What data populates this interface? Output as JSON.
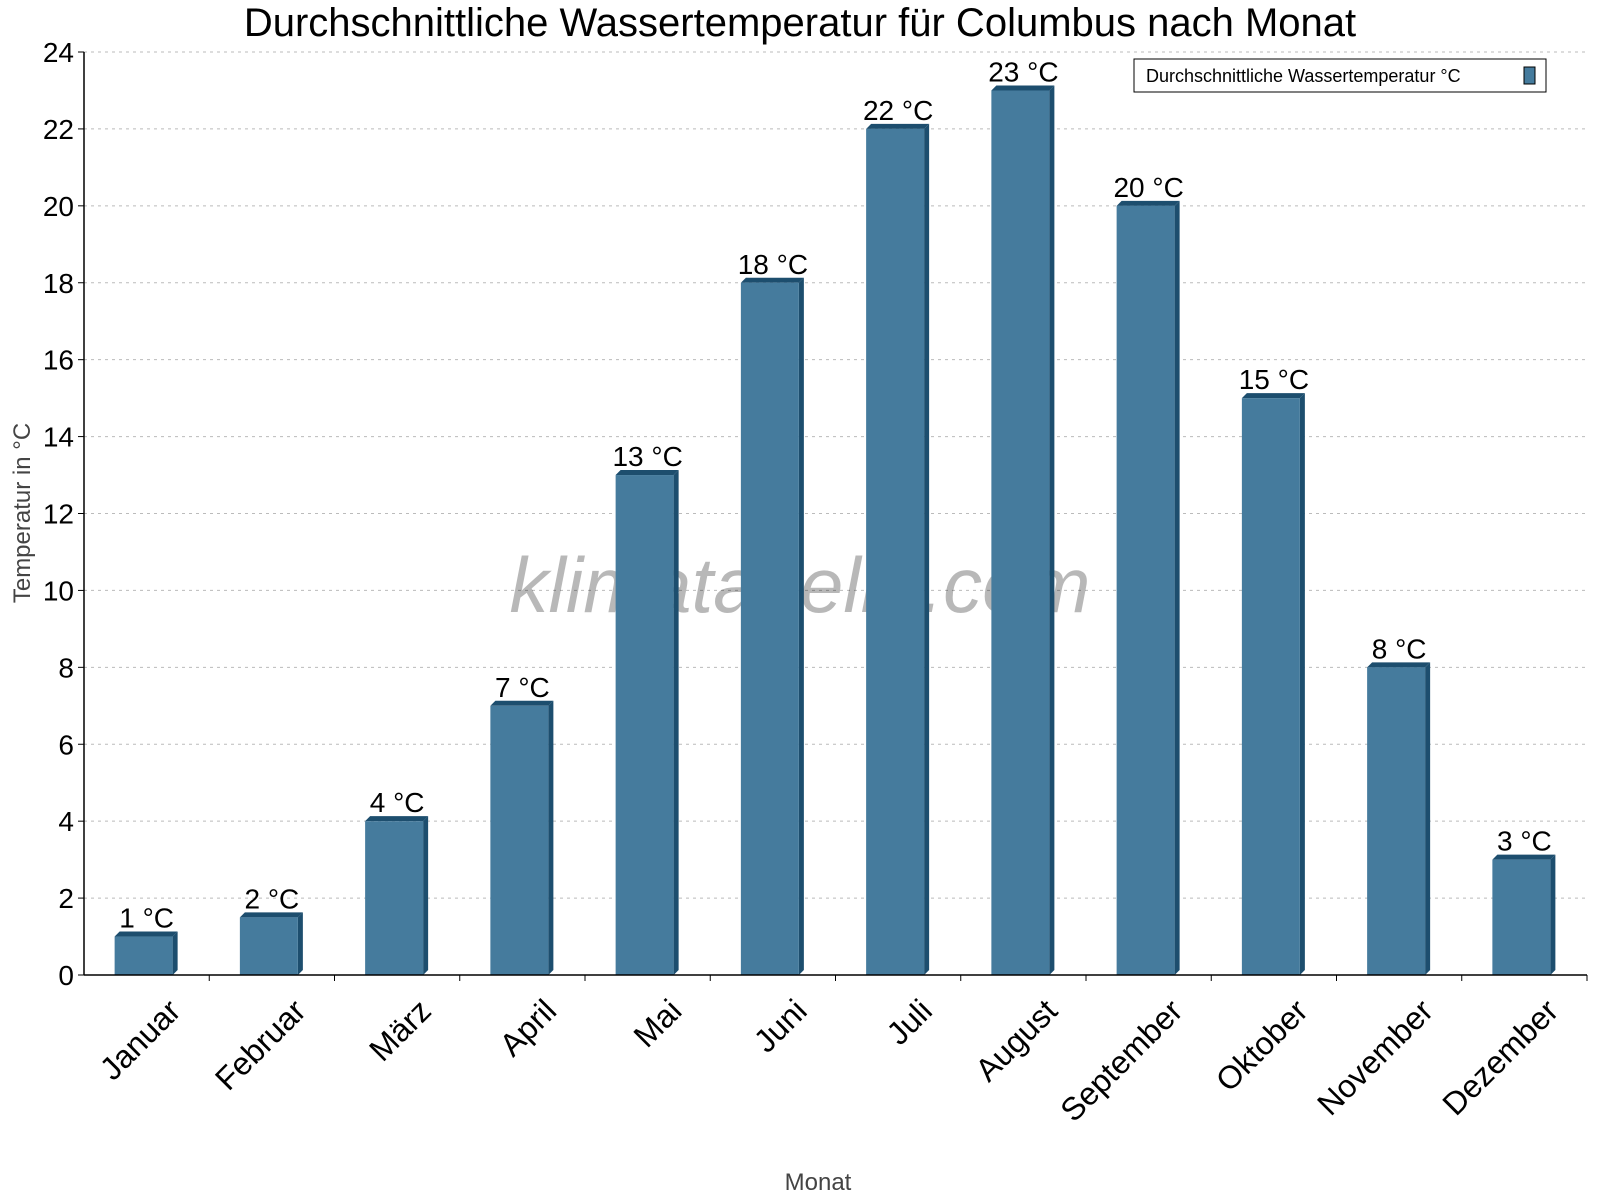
{
  "chart_data": {
    "type": "bar",
    "title": "Durchschnittliche Wassertemperatur für Columbus nach Monat",
    "xlabel": "Monat",
    "ylabel": "Temperatur in °C",
    "categories": [
      "Januar",
      "Februar",
      "März",
      "April",
      "Mai",
      "Juni",
      "Juli",
      "August",
      "September",
      "Oktober",
      "November",
      "Dezember"
    ],
    "series": [
      {
        "name": "Durchschnittliche Wassertemperatur °C",
        "values": [
          1,
          1.5,
          4,
          7,
          13,
          18,
          22,
          23,
          20,
          15,
          8,
          3
        ],
        "data_labels": [
          "1 °C",
          "2 °C",
          "4 °C",
          "7 °C",
          "13 °C",
          "18 °C",
          "22 °C",
          "23 °C",
          "20 °C",
          "15 °C",
          "8 °C",
          "3 °C"
        ]
      }
    ],
    "ylim": [
      0,
      24
    ],
    "yticks": [
      0,
      2,
      4,
      6,
      8,
      10,
      12,
      14,
      16,
      18,
      20,
      22,
      24
    ],
    "grid": true,
    "legend_position": "top-right",
    "colors": {
      "bar": "#457b9d",
      "bar_shade": "#1d4e6e"
    },
    "watermark": "klimatabelle.com"
  }
}
